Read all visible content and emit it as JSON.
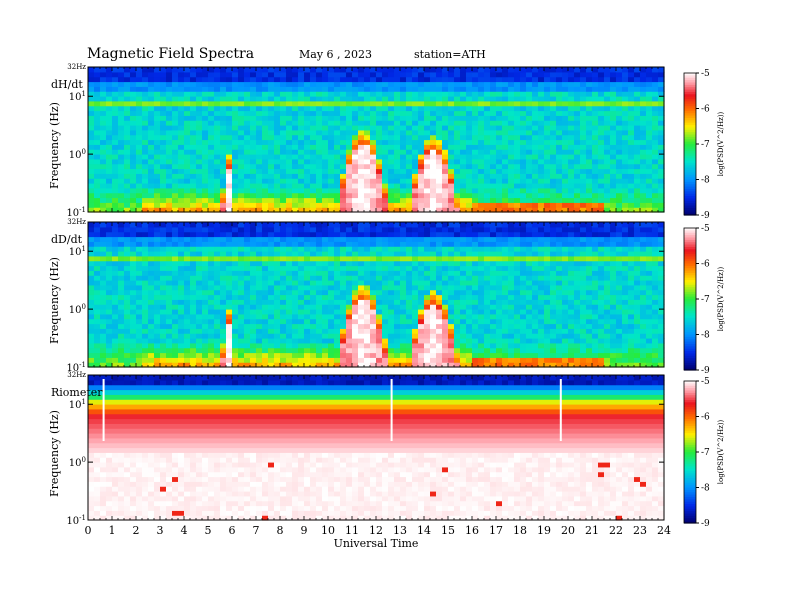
{
  "header": {
    "title": "Magnetic  Field  Spectra",
    "date": "May 6  , 2023",
    "station": "station=ATH"
  },
  "chart_data": [
    {
      "type": "heatmap",
      "panel_label": "dH/dt",
      "ylabel": "Frequency  (Hz)",
      "y_scale": "log",
      "y_ticks": [
        "10^-1",
        "10^0",
        "10^1"
      ],
      "y_top_label": "32Hz",
      "x_range": [
        0,
        24
      ],
      "colorbar": {
        "label": "log(PSD(V^2/Hz))",
        "range": [
          -9,
          -5
        ],
        "ticks": [
          "-5",
          "-6",
          "-7",
          "-8",
          "-9"
        ]
      },
      "enhancements_UT": [
        {
          "start": 10.4,
          "end": 12.5,
          "peak_hz": 1.5
        },
        {
          "start": 13.4,
          "end": 15.4,
          "peak_hz": 1.2
        },
        {
          "start": 5.6,
          "end": 6.1,
          "peak_hz": 0.6
        }
      ]
    },
    {
      "type": "heatmap",
      "panel_label": "dD/dt",
      "ylabel": "Frequency  (Hz)",
      "y_scale": "log",
      "y_ticks": [
        "10^-1",
        "10^0",
        "10^1"
      ],
      "y_top_label": "32Hz",
      "x_range": [
        0,
        24
      ],
      "colorbar": {
        "label": "log(PSD(V^2/Hz))",
        "range": [
          -9,
          -5
        ],
        "ticks": [
          "-5",
          "-6",
          "-7",
          "-8",
          "-9"
        ]
      },
      "enhancements_UT": [
        {
          "start": 10.4,
          "end": 12.5,
          "peak_hz": 1.5
        },
        {
          "start": 13.4,
          "end": 15.4,
          "peak_hz": 1.2
        },
        {
          "start": 5.6,
          "end": 6.1,
          "peak_hz": 0.6
        }
      ]
    },
    {
      "type": "heatmap",
      "panel_label": "Riometer",
      "ylabel": "Frequency  (Hz)",
      "y_scale": "log",
      "y_ticks": [
        "10^-1",
        "10^0",
        "10^1"
      ],
      "y_top_label": "32Hz",
      "x_range": [
        0,
        24
      ],
      "xlabel": "Universal  Time",
      "x_ticks": [
        "0",
        "1",
        "2",
        "3",
        "4",
        "5",
        "6",
        "7",
        "8",
        "9",
        "10",
        "11",
        "12",
        "13",
        "14",
        "15",
        "16",
        "17",
        "18",
        "19",
        "20",
        "21",
        "22",
        "23",
        "24"
      ],
      "colorbar": {
        "label": "log(PSD(V^2/Hz))",
        "range": [
          -9,
          -5
        ],
        "ticks": [
          "-5",
          "-6",
          "-7",
          "-8",
          "-9"
        ]
      },
      "vertical_lines_UT": [
        0.65,
        12.65,
        19.7
      ]
    }
  ]
}
